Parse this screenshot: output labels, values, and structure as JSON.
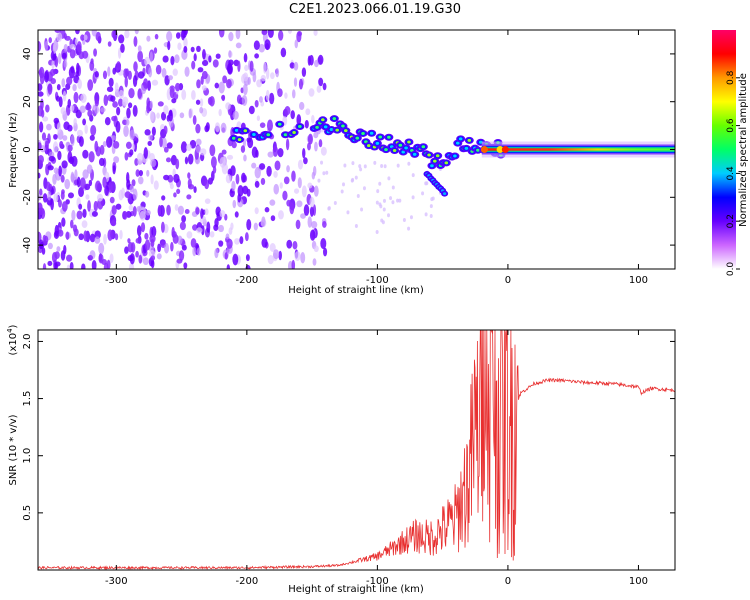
{
  "title": "C2E1.2023.066.01.19.G30",
  "chart_data": [
    {
      "type": "heatmap",
      "xlabel": "Height of straight line (km)",
      "ylabel": "Frequency (Hz)",
      "xlim": [
        -360,
        128
      ],
      "ylim": [
        -50,
        50
      ],
      "xticks": [
        -300,
        -200,
        -100,
        0,
        100
      ],
      "yticks": [
        -40,
        -20,
        0,
        20,
        40
      ],
      "colorbar": {
        "label": "Normalized spectral amplitude",
        "range": [
          0,
          1
        ],
        "ticks": [
          "0.0",
          "0.2",
          "0.4",
          "0.6",
          "0.8"
        ],
        "colors": [
          "#ffffff",
          "#cc66ff",
          "#6600ff",
          "#0000ff",
          "#00ccff",
          "#00ff66",
          "#66ff00",
          "#ffff00",
          "#ff9900",
          "#ff0000",
          "#ff0066"
        ]
      },
      "trace": {
        "x": [
          -210,
          -160,
          -145,
          -130,
          -110,
          -90,
          -70,
          -55,
          -45,
          -35,
          -20,
          0,
          50,
          100,
          128
        ],
        "y": [
          7,
          8,
          10,
          10,
          5,
          2,
          0,
          -5,
          -2,
          3,
          1,
          0,
          0,
          0,
          0
        ]
      },
      "noise_region_x": [
        -360,
        -140
      ]
    },
    {
      "type": "line",
      "xlabel": "Height of straight line (km)",
      "ylabel": "SNR (10 * v/v)",
      "multiplier": "(x10",
      "multiplier_exp": "4",
      "multiplier_close": ")",
      "xlim": [
        -360,
        128
      ],
      "ylim": [
        0,
        2.1
      ],
      "xticks": [
        -300,
        -200,
        -100,
        0,
        100
      ],
      "yticks": [
        "0.5",
        "1.0",
        "1.5",
        "2.0"
      ],
      "color": "#e83030",
      "series": [
        {
          "x": [
            -360,
            -300,
            -200,
            -150,
            -130,
            -115,
            -100,
            -90,
            -80,
            -70,
            -60,
            -50,
            -40,
            -30,
            -25,
            -20,
            -16,
            -12,
            -8,
            -4,
            0,
            10,
            20,
            30,
            40,
            50,
            60,
            80,
            95,
            100,
            102,
            110,
            120,
            128
          ],
          "y": [
            0.02,
            0.02,
            0.02,
            0.03,
            0.04,
            0.08,
            0.12,
            0.18,
            0.25,
            0.3,
            0.28,
            0.35,
            0.45,
            0.8,
            1.2,
            1.4,
            1.7,
            1.45,
            1.4,
            1.4,
            1.3,
            1.55,
            1.63,
            1.66,
            1.66,
            1.65,
            1.64,
            1.63,
            1.61,
            1.6,
            1.55,
            1.59,
            1.58,
            1.57
          ]
        }
      ]
    }
  ]
}
